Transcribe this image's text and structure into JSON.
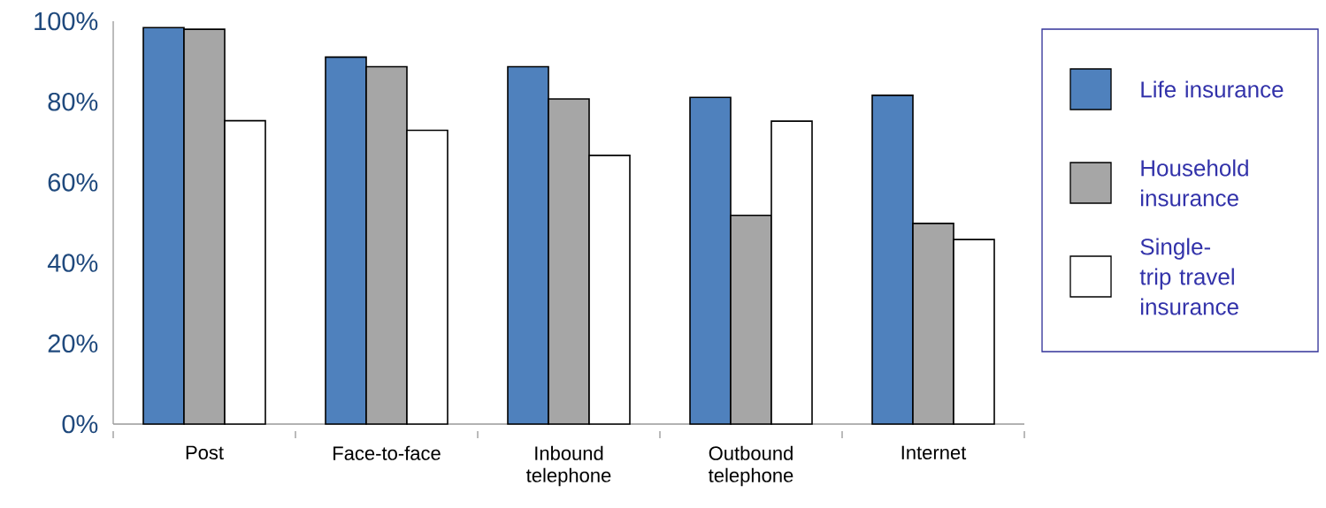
{
  "chart_data": {
    "type": "bar",
    "categories": [
      "Post",
      "Face-to-face",
      "Inbound telephone",
      "Outbound telephone",
      "Internet"
    ],
    "series": [
      {
        "name": "Life insurance",
        "color": "#4f81bd",
        "values": [
          98.4,
          91.1,
          88.7,
          81.1,
          81.6
        ]
      },
      {
        "name": "Household insurance",
        "color": "#a6a6a6",
        "values": [
          98.0,
          88.7,
          80.7,
          51.8,
          49.8
        ]
      },
      {
        "name": "Single-trip travel insurance",
        "color": "#ffffff",
        "values": [
          75.3,
          72.9,
          66.7,
          75.2,
          45.8
        ]
      }
    ],
    "ylim": [
      0,
      100
    ],
    "yticks": [
      {
        "value": 0,
        "label": "0%"
      },
      {
        "value": 20,
        "label": "20%"
      },
      {
        "value": 40,
        "label": "40%"
      },
      {
        "value": 60,
        "label": "60%"
      },
      {
        "value": 80,
        "label": "80%"
      },
      {
        "value": 100,
        "label": "100%"
      }
    ],
    "grid": false,
    "legend": "right"
  }
}
